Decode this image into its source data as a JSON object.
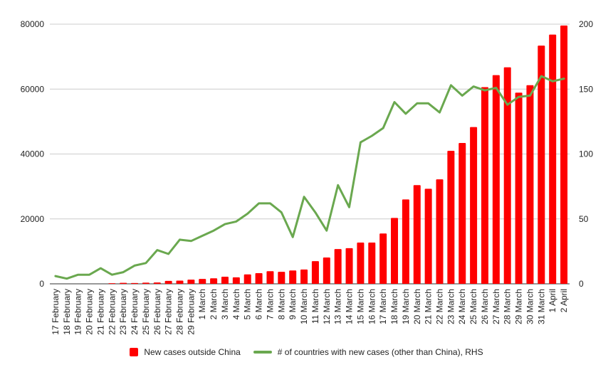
{
  "chart_data": {
    "type": "bar",
    "title": "",
    "xlabel": "",
    "ylabel": "",
    "ylim": [
      0,
      80000
    ],
    "y2lim": [
      0,
      200
    ],
    "yticks": [
      0,
      20000,
      40000,
      60000,
      80000
    ],
    "y2ticks": [
      0,
      50,
      100,
      150,
      200
    ],
    "grid": true,
    "legend_position": "bottom",
    "categories": [
      "17 February",
      "18 February",
      "19 February",
      "20 February",
      "21 February",
      "22 February",
      "23 February",
      "24 February",
      "25 February",
      "26 February",
      "27 February",
      "28 February",
      "29 February",
      "1 March",
      "2 March",
      "3 March",
      "4 March",
      "5 March",
      "6 March",
      "7 March",
      "8 March",
      "9 March",
      "10 March",
      "11 March",
      "12 March",
      "13 March",
      "14 March",
      "15 March",
      "16 March",
      "17 March",
      "18 March",
      "19 March",
      "20 March",
      "21 March",
      "22 March",
      "23 March",
      "24 March",
      "25 March",
      "26 March",
      "27 March",
      "28 March",
      "29 March",
      "30 March",
      "31 March",
      "1 April",
      "2 April"
    ],
    "series": [
      {
        "name": "New cases outside China",
        "type": "bar",
        "axis": "left",
        "color": "#ff0000",
        "values": [
          0,
          0,
          0,
          0,
          0,
          200,
          300,
          250,
          350,
          400,
          900,
          1000,
          1300,
          1500,
          1700,
          2200,
          2000,
          2900,
          3300,
          3900,
          3700,
          4100,
          4400,
          7000,
          8100,
          10700,
          11000,
          12700,
          12700,
          15500,
          20300,
          26000,
          30400,
          29300,
          32200,
          41000,
          43400,
          48300,
          60600,
          64300,
          66700,
          58900,
          61200,
          73400,
          76800,
          79600
        ]
      },
      {
        "name": "# of countries with new cases (other than China), RHS",
        "type": "line",
        "axis": "right",
        "color": "#6aa84f",
        "values": [
          6,
          4,
          7,
          7,
          12,
          7,
          9,
          14,
          16,
          26,
          23,
          34,
          33,
          37,
          41,
          46,
          48,
          54,
          62,
          62,
          55,
          36,
          67,
          55,
          41,
          76,
          59,
          109,
          114,
          120,
          140,
          131,
          139,
          139,
          132,
          153,
          145,
          152,
          149,
          151,
          138,
          144,
          145,
          160,
          156,
          158
        ]
      }
    ]
  }
}
